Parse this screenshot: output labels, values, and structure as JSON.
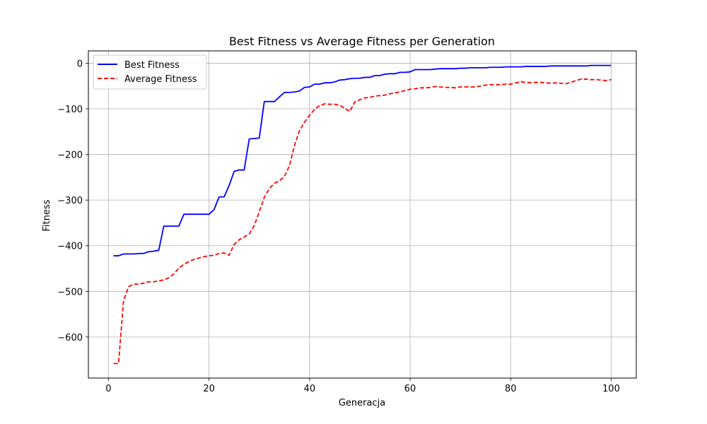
{
  "chart_data": {
    "type": "line",
    "title": "Best Fitness vs Average Fitness per Generation",
    "xlabel": "Generacja",
    "ylabel": "Fitness",
    "xlim": [
      -4,
      105
    ],
    "ylim": [
      -690,
      27
    ],
    "x_ticks": [
      0,
      20,
      40,
      60,
      80,
      100
    ],
    "y_ticks": [
      0,
      -100,
      -200,
      -300,
      -400,
      -500,
      -600
    ],
    "x_tick_labels": [
      "0",
      "20",
      "40",
      "60",
      "80",
      "100"
    ],
    "y_tick_labels": [
      "0",
      "−100",
      "−200",
      "−300",
      "−400",
      "−500",
      "−600"
    ],
    "grid": true,
    "legend_position": "upper-left",
    "series": [
      {
        "name": "Best Fitness",
        "color": "#0000ff",
        "style": "solid",
        "x": [
          1,
          2,
          3,
          4,
          5,
          6,
          7,
          8,
          9,
          10,
          11,
          12,
          13,
          14,
          15,
          16,
          17,
          18,
          19,
          20,
          21,
          22,
          23,
          24,
          25,
          26,
          27,
          28,
          29,
          30,
          31,
          32,
          33,
          34,
          35,
          36,
          37,
          38,
          39,
          40,
          41,
          42,
          43,
          44,
          45,
          46,
          47,
          48,
          49,
          50,
          51,
          52,
          53,
          54,
          55,
          56,
          57,
          58,
          59,
          60,
          61,
          62,
          63,
          64,
          65,
          66,
          67,
          68,
          69,
          70,
          71,
          72,
          73,
          74,
          75,
          76,
          77,
          78,
          79,
          80,
          81,
          82,
          83,
          84,
          85,
          86,
          87,
          88,
          89,
          90,
          91,
          92,
          93,
          94,
          95,
          96,
          97,
          98,
          99,
          100
        ],
        "y": [
          -422,
          -422,
          -418,
          -418,
          -418,
          -417,
          -417,
          -413,
          -412,
          -410,
          -357,
          -357,
          -357,
          -357,
          -331,
          -331,
          -331,
          -331,
          -331,
          -331,
          -321,
          -293,
          -293,
          -268,
          -237,
          -234,
          -234,
          -166,
          -165,
          -164,
          -84,
          -84,
          -84,
          -74,
          -64,
          -64,
          -63,
          -61,
          -53,
          -52,
          -46,
          -46,
          -43,
          -43,
          -41,
          -37,
          -36,
          -34,
          -33,
          -33,
          -31,
          -31,
          -27,
          -27,
          -24,
          -23,
          -23,
          -20,
          -20,
          -19,
          -14,
          -14,
          -14,
          -14,
          -13,
          -12,
          -12,
          -12,
          -12,
          -11,
          -11,
          -10,
          -10,
          -10,
          -10,
          -9,
          -9,
          -9,
          -8,
          -8,
          -8,
          -8,
          -7,
          -7,
          -7,
          -7,
          -7,
          -6,
          -6,
          -6,
          -6,
          -6,
          -6,
          -6,
          -6,
          -5,
          -5,
          -5,
          -5,
          -5
        ]
      },
      {
        "name": "Average Fitness",
        "color": "#ff0000",
        "style": "dashed",
        "x": [
          1,
          2,
          3,
          4,
          5,
          6,
          7,
          8,
          9,
          10,
          11,
          12,
          13,
          14,
          15,
          16,
          17,
          18,
          19,
          20,
          21,
          22,
          23,
          24,
          25,
          26,
          27,
          28,
          29,
          30,
          31,
          32,
          33,
          34,
          35,
          36,
          37,
          38,
          39,
          40,
          41,
          42,
          43,
          44,
          45,
          46,
          47,
          48,
          49,
          50,
          51,
          52,
          53,
          54,
          55,
          56,
          57,
          58,
          59,
          60,
          61,
          62,
          63,
          64,
          65,
          66,
          67,
          68,
          69,
          70,
          71,
          72,
          73,
          74,
          75,
          76,
          77,
          78,
          79,
          80,
          81,
          82,
          83,
          84,
          85,
          86,
          87,
          88,
          89,
          90,
          91,
          92,
          93,
          94,
          95,
          96,
          97,
          98,
          99,
          100
        ],
        "y": [
          -658,
          -658,
          -520,
          -490,
          -484,
          -484,
          -482,
          -479,
          -479,
          -477,
          -475,
          -470,
          -462,
          -449,
          -441,
          -435,
          -430,
          -427,
          -424,
          -422,
          -421,
          -417,
          -416,
          -421,
          -397,
          -387,
          -381,
          -374,
          -356,
          -325,
          -294,
          -275,
          -263,
          -258,
          -248,
          -225,
          -180,
          -148,
          -129,
          -114,
          -101,
          -93,
          -89,
          -90,
          -90,
          -92,
          -99,
          -106,
          -85,
          -80,
          -76,
          -75,
          -72,
          -71,
          -70,
          -67,
          -65,
          -63,
          -60,
          -57,
          -56,
          -54,
          -54,
          -53,
          -51,
          -52,
          -53,
          -53,
          -54,
          -52,
          -52,
          -52,
          -52,
          -50,
          -48,
          -47,
          -47,
          -47,
          -46,
          -46,
          -43,
          -41,
          -42,
          -43,
          -42,
          -42,
          -43,
          -44,
          -43,
          -44,
          -45,
          -42,
          -38,
          -35,
          -35,
          -36,
          -36,
          -37,
          -38,
          -36
        ]
      }
    ]
  }
}
